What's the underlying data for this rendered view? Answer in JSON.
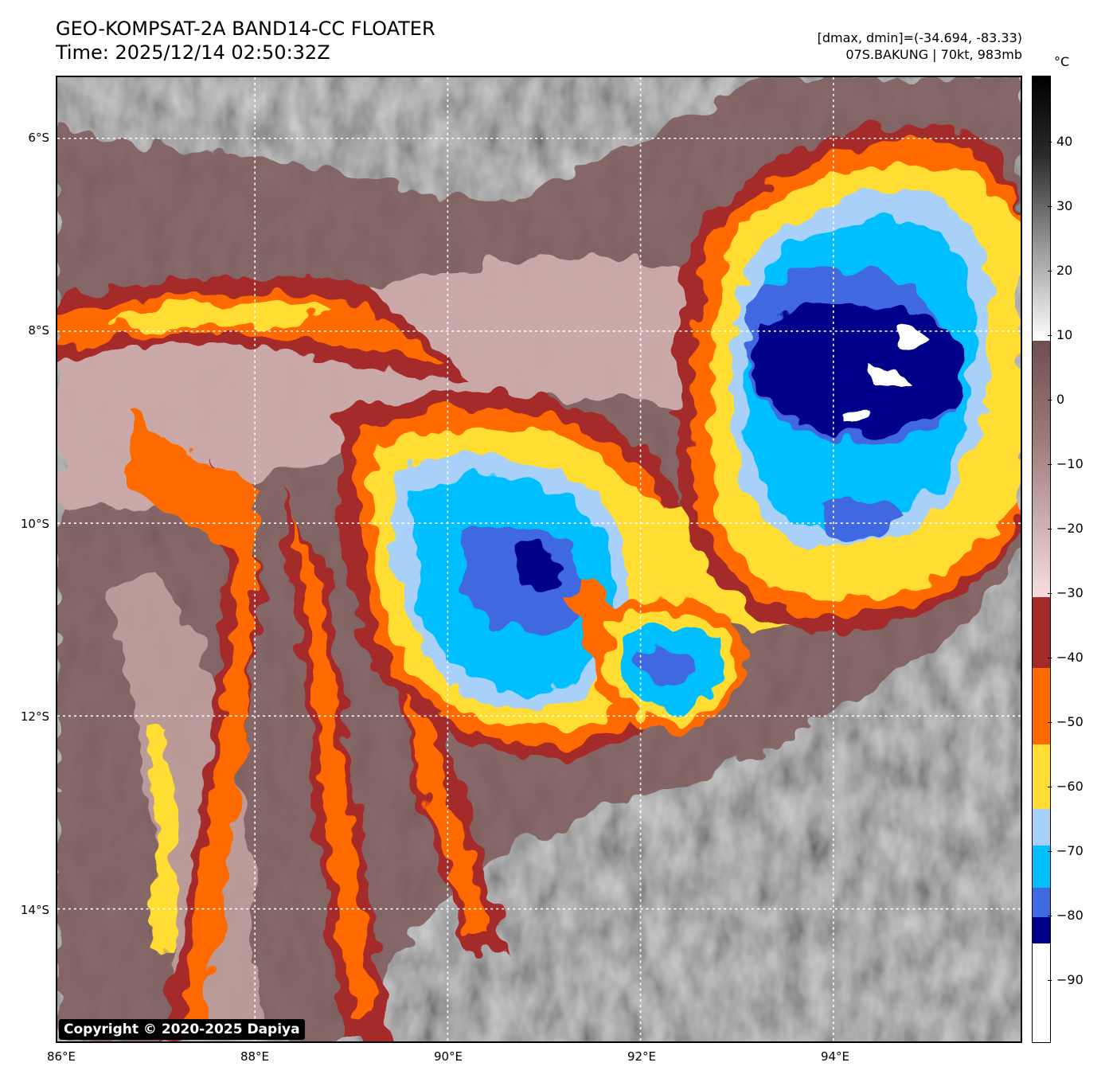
{
  "header": {
    "title_line1": "GEO-KOMPSAT-2A BAND14-CC FLOATER",
    "title_line2": "Time: 2025/12/14 02:50:32Z",
    "info_line1": "[dmax, dmin]=(-34.694, -83.33)",
    "info_line2": "07S.BAKUNG | 70kt, 983mb"
  },
  "map": {
    "lat_labels": [
      "6°S",
      "8°S",
      "10°S",
      "12°S",
      "14°S"
    ],
    "lon_labels": [
      "86°E",
      "88°E",
      "90°E",
      "92°E",
      "94°E"
    ],
    "copyright": "Copyright © 2020-2025 Dapiya"
  },
  "colorbar": {
    "unit": "°C",
    "tick_labels": [
      "40",
      "30",
      "20",
      "10",
      "0",
      "−10",
      "−20",
      "−30",
      "−40",
      "−50",
      "−60",
      "−70",
      "−80",
      "−90"
    ],
    "colors": {
      "dark_blue": "#00008b",
      "royal_blue": "#4169e1",
      "deep_sky_blue": "#00bfff",
      "light_blue": "#a8d0f8",
      "gold": "#ffdd33",
      "orange": "#ff6a00",
      "brown": "#a52a2a",
      "pink": "#f5d2d2",
      "mauve": "#7e5a5a"
    }
  }
}
